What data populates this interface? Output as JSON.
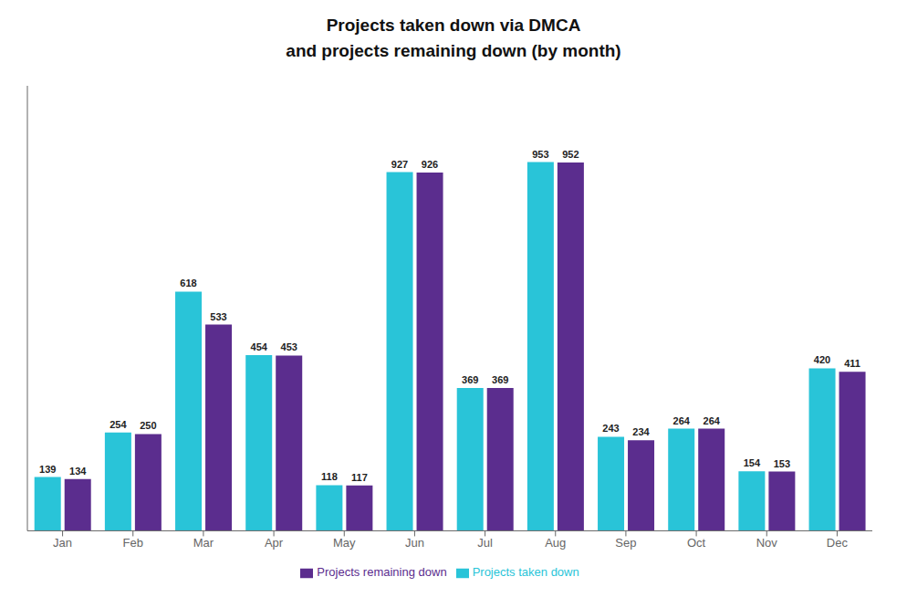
{
  "chart_data": {
    "type": "bar",
    "title": "Projects taken down via DMCA",
    "subtitle": "and projects remaining down (by month)",
    "categories": [
      "Jan",
      "Feb",
      "Mar",
      "Apr",
      "May",
      "Jun",
      "Jul",
      "Aug",
      "Sep",
      "Oct",
      "Nov",
      "Dec"
    ],
    "series": [
      {
        "name": "Projects taken down",
        "color": "#29C4D8",
        "values": [
          139,
          254,
          618,
          454,
          118,
          927,
          369,
          953,
          243,
          264,
          154,
          420
        ]
      },
      {
        "name": "Projects remaining down",
        "color": "#5B2D8E",
        "values": [
          134,
          250,
          533,
          453,
          117,
          926,
          369,
          952,
          234,
          264,
          153,
          411
        ]
      }
    ],
    "ylim": [
      0,
      1150
    ],
    "data_labels": true,
    "tick_labels": "x",
    "legend": "bottom",
    "grid": false
  }
}
